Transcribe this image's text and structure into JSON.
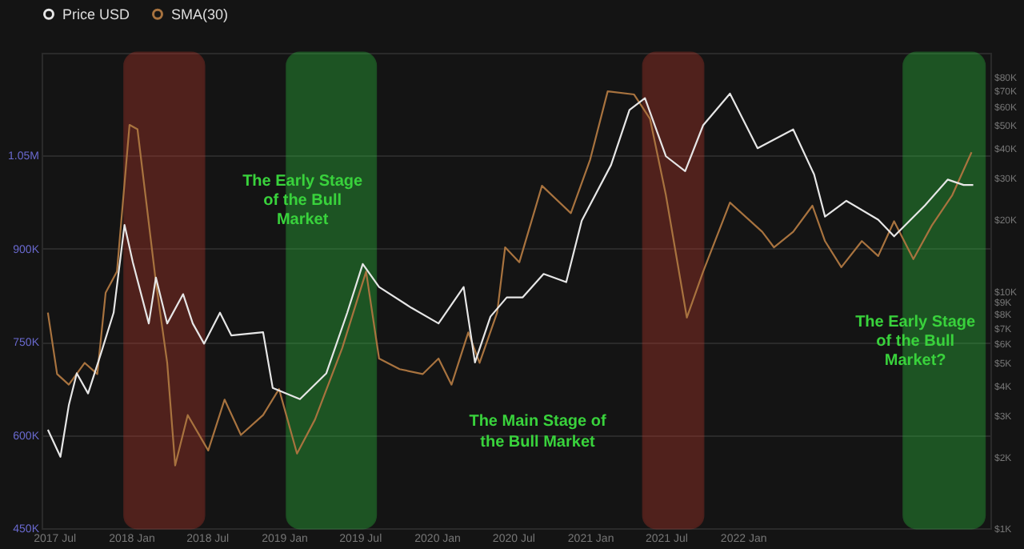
{
  "chart_data": {
    "type": "line",
    "legend": "top",
    "grid": "y",
    "marker": "none",
    "line_style": "solid",
    "xlim": [
      "2017-06-01",
      "2023-08-15"
    ],
    "xticks": [
      {
        "value": "2017-07-01",
        "label": "2017 Jul"
      },
      {
        "value": "2018-01-01",
        "label": "2018 Jan"
      },
      {
        "value": "2018-07-01",
        "label": "2018 Jul"
      },
      {
        "value": "2019-01-01",
        "label": "2019 Jan"
      },
      {
        "value": "2019-07-01",
        "label": "2019 Jul"
      },
      {
        "value": "2020-01-01",
        "label": "2020 Jan"
      },
      {
        "value": "2020-07-01",
        "label": "2020 Jul"
      },
      {
        "value": "2021-01-01",
        "label": "2021 Jan"
      },
      {
        "value": "2021-07-01",
        "label": "2021 Jul"
      },
      {
        "value": "2022-01-01",
        "label": "2022 Jan"
      }
    ],
    "ylim": [
      450000,
      1215000
    ],
    "yticks": [
      {
        "value": 450000,
        "label": "450K"
      },
      {
        "value": 600000,
        "label": "600K"
      },
      {
        "value": 750000,
        "label": "750K"
      },
      {
        "value": 900000,
        "label": "900K"
      },
      {
        "value": 1050000,
        "label": "1.05M"
      }
    ],
    "log": "y2",
    "y2lim": [
      1000,
      101000
    ],
    "y2ticks": [
      {
        "value": 1000,
        "label": "$1K"
      },
      {
        "value": 2000,
        "label": "$2K"
      },
      {
        "value": 3000,
        "label": "$3K"
      },
      {
        "value": 4000,
        "label": "$4K"
      },
      {
        "value": 5000,
        "label": "$5K"
      },
      {
        "value": 6000,
        "label": "$6K"
      },
      {
        "value": 7000,
        "label": "$7K"
      },
      {
        "value": 8000,
        "label": "$8K"
      },
      {
        "value": 9000,
        "label": "$9K"
      },
      {
        "value": 10000,
        "label": "$10K"
      },
      {
        "value": 20000,
        "label": "$20K"
      },
      {
        "value": 30000,
        "label": "$30K"
      },
      {
        "value": 40000,
        "label": "$40K"
      },
      {
        "value": 50000,
        "label": "$50K"
      },
      {
        "value": 60000,
        "label": "$60K"
      },
      {
        "value": 70000,
        "label": "$70K"
      },
      {
        "value": 80000,
        "label": "$80K"
      }
    ],
    "series": [
      {
        "name": "Price USD",
        "color": "#e6e6e6",
        "axis": "y2",
        "x": [
          "2017-06-16",
          "2017-07-16",
          "2017-08-05",
          "2017-08-24",
          "2017-09-20",
          "2017-10-20",
          "2017-11-20",
          "2017-12-16",
          "2018-01-05",
          "2018-02-12",
          "2018-03-01",
          "2018-03-28",
          "2018-05-05",
          "2018-05-28",
          "2018-06-24",
          "2018-08-01",
          "2018-08-28",
          "2018-11-12",
          "2018-12-05",
          "2019-02-08",
          "2019-04-12",
          "2019-06-01",
          "2019-07-08",
          "2019-08-16",
          "2019-11-01",
          "2020-01-05",
          "2020-03-05",
          "2020-04-01",
          "2020-05-08",
          "2020-06-16",
          "2020-07-24",
          "2020-09-12",
          "2020-11-05",
          "2020-12-12",
          "2021-02-20",
          "2021-04-05",
          "2021-05-12",
          "2021-07-01",
          "2021-08-16",
          "2021-09-28",
          "2021-12-01",
          "2022-02-05",
          "2022-05-01",
          "2022-06-20",
          "2022-07-16",
          "2022-09-05",
          "2022-11-20",
          "2022-12-28",
          "2023-03-12",
          "2023-05-05",
          "2023-06-12",
          "2023-07-05"
        ],
        "values": [
          2600,
          2000,
          3300,
          4500,
          3700,
          5400,
          8100,
          19000,
          13200,
          7300,
          11400,
          7300,
          9700,
          7300,
          6000,
          8100,
          6500,
          6700,
          3900,
          3500,
          4500,
          8100,
          13000,
          10400,
          8500,
          7300,
          10400,
          5000,
          7800,
          9400,
          9400,
          11800,
          10900,
          19800,
          34000,
          58000,
          65000,
          37000,
          32000,
          50000,
          68000,
          40000,
          48000,
          31000,
          20600,
          24000,
          20000,
          17000,
          23000,
          29500,
          28000,
          28000
        ]
      },
      {
        "name": "SMA(30)",
        "color": "#a8733f",
        "x": [
          "2017-06-16",
          "2017-07-08",
          "2017-08-05",
          "2017-09-12",
          "2017-10-12",
          "2017-11-01",
          "2017-11-28",
          "2017-12-28",
          "2018-01-16",
          "2018-02-04",
          "2018-03-01",
          "2018-03-28",
          "2018-04-16",
          "2018-05-16",
          "2018-07-04",
          "2018-08-12",
          "2018-09-20",
          "2018-11-12",
          "2018-12-20",
          "2019-02-01",
          "2019-03-16",
          "2019-05-20",
          "2019-07-16",
          "2019-08-16",
          "2019-10-04",
          "2019-11-28",
          "2020-01-05",
          "2020-02-05",
          "2020-03-16",
          "2020-04-12",
          "2020-05-24",
          "2020-06-12",
          "2020-07-16",
          "2020-09-08",
          "2020-11-16",
          "2021-01-01",
          "2021-02-12",
          "2021-04-16",
          "2021-05-24",
          "2021-07-01",
          "2021-08-20",
          "2021-09-28",
          "2021-12-01",
          "2022-02-16",
          "2022-03-16",
          "2022-05-01",
          "2022-06-16",
          "2022-07-16",
          "2022-08-24",
          "2022-10-12",
          "2022-11-20",
          "2022-12-28",
          "2023-02-12",
          "2023-03-28",
          "2023-05-16",
          "2023-07-01"
        ],
        "values": [
          797000,
          698000,
          681000,
          716000,
          698000,
          829000,
          863000,
          1099000,
          1092000,
          986000,
          846000,
          716000,
          551000,
          632000,
          575000,
          657000,
          600000,
          632000,
          674000,
          570000,
          625000,
          740000,
          863000,
          723000,
          706000,
          698000,
          723000,
          681000,
          765000,
          716000,
          797000,
          902000,
          878000,
          1001000,
          957000,
          1043000,
          1153000,
          1148000,
          1109000,
          986000,
          789000,
          863000,
          974000,
          927000,
          902000,
          927000,
          969000,
          912000,
          870000,
          912000,
          888000,
          944000,
          883000,
          937000,
          986000,
          1055000
        ]
      }
    ],
    "bands": [
      {
        "axis": "x",
        "from": "2017-12-16",
        "to": "2018-06-24",
        "color": "#c0392b"
      },
      {
        "axis": "x",
        "from": "2019-01-08",
        "to": "2019-08-08",
        "color": "#2ecc40",
        "label": "The Early Stage of the Bull Market"
      },
      {
        "axis": "x",
        "from": "2021-05-08",
        "to": "2021-09-28",
        "color": "#c0392b"
      },
      {
        "axis": "x",
        "from": "2023-01-20",
        "to": "2023-08-01",
        "color": "#2ecc40",
        "label": "The Early Stage of the Bull Market?"
      }
    ],
    "annotations": [
      "The Main Stage of the Bull Market"
    ]
  }
}
